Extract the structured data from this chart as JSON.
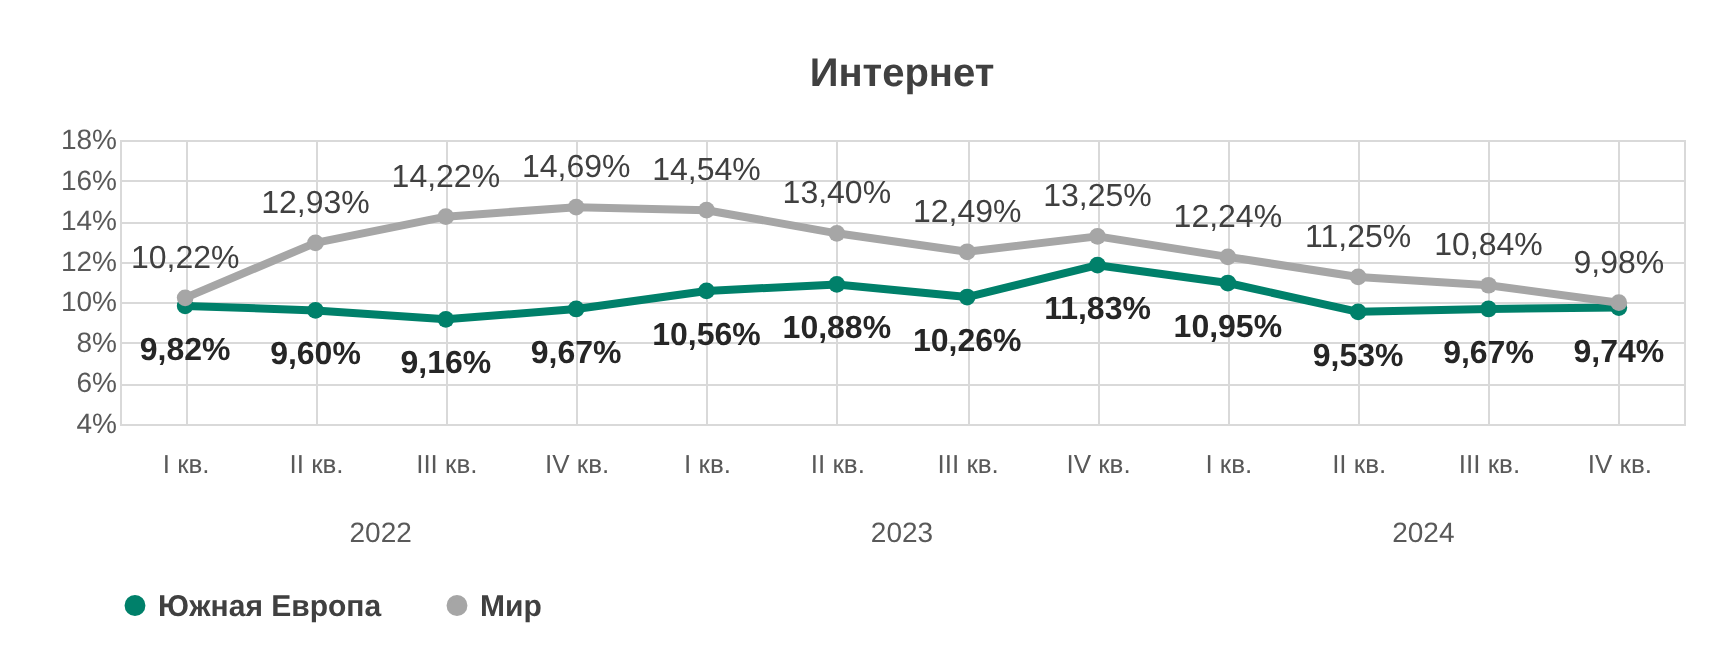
{
  "chart_data": {
    "type": "line",
    "title": "Интернет",
    "categories": [
      "I кв.",
      "II кв.",
      "III кв.",
      "IV кв.",
      "I кв.",
      "II кв.",
      "III кв.",
      "IV кв.",
      "I кв.",
      "II кв.",
      "III кв.",
      "IV кв."
    ],
    "series": [
      {
        "name": "Южная Европа",
        "color": "#00806a",
        "values": [
          9.82,
          9.6,
          9.16,
          9.67,
          10.56,
          10.88,
          10.26,
          11.83,
          10.95,
          9.53,
          9.67,
          9.74
        ],
        "value_labels": [
          "9,82%",
          "9,60%",
          "9,16%",
          "9,67%",
          "10,56%",
          "10,88%",
          "10,26%",
          "11,83%",
          "10,95%",
          "9,53%",
          "9,67%",
          "9,74%"
        ]
      },
      {
        "name": "Мир",
        "color": "#a6a6a6",
        "values": [
          10.22,
          12.93,
          14.22,
          14.69,
          14.54,
          13.4,
          12.49,
          13.25,
          12.24,
          11.25,
          10.84,
          9.98
        ],
        "value_labels": [
          "10,22%",
          "12,93%",
          "14,22%",
          "14,69%",
          "14,54%",
          "13,40%",
          "12,49%",
          "13,25%",
          "12,24%",
          "11,25%",
          "10,84%",
          "9,98%"
        ]
      }
    ],
    "annotations": [
      "2022",
      "2023",
      "2024"
    ],
    "ylim": [
      4,
      18
    ],
    "yticks": [
      {
        "value": 4,
        "label": "4%"
      },
      {
        "value": 6,
        "label": "6%"
      },
      {
        "value": 8,
        "label": "8%"
      },
      {
        "value": 10,
        "label": "10%"
      },
      {
        "value": 12,
        "label": "12%"
      },
      {
        "value": 14,
        "label": "14%"
      },
      {
        "value": 16,
        "label": "16%"
      },
      {
        "value": 18,
        "label": "18%"
      }
    ],
    "grid": true,
    "legend": "bottom",
    "marker": "circle",
    "line_style": "solid"
  }
}
